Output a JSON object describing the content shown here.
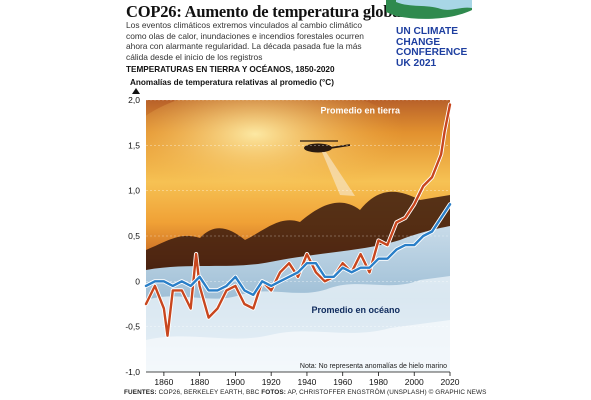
{
  "header": {
    "title": "COP26: Aumento de temperatura global",
    "intro": "Los eventos climáticos extremos vinculados al cambio climático como olas de calor, inundaciones e incendios forestales ocurren ahora con alarmante regularidad. La década pasada fue la más cálida desde el inicio de los registros"
  },
  "logo": {
    "lines": [
      "UN CLIMATE",
      "CHANGE",
      "CONFERENCE",
      "UK 2021"
    ],
    "color": "#1e3fa0"
  },
  "sources": {
    "label_sources": "FUENTES:",
    "sources_text": "COP26, BERKELEY EARTH, BBC",
    "label_photos": "FOTOS:",
    "photos_text": "AP, CHRISTOFFER ENGSTRÖM (UNSPLASH) © GRAPHIC NEWS"
  },
  "chart_data": {
    "type": "line",
    "title": "TEMPERATURAS EN TIERRA Y OCÉANOS, 1850-2020",
    "ylabel": "Anomalías de temperatura relativas al promedio (°C)",
    "xlabel": "",
    "xlim": [
      1850,
      2020
    ],
    "ylim": [
      -1.0,
      2.0
    ],
    "x_ticks": [
      "1860",
      "1880",
      "1900",
      "1920",
      "1940",
      "1960",
      "1980",
      "2000",
      "2020"
    ],
    "y_ticks": [
      "2,0",
      "1,5",
      "1,0",
      "0,5",
      "0",
      "-0,5",
      "-1,0"
    ],
    "grid": true,
    "note": "Nota: No representa anomalías de hielo marino",
    "series": [
      {
        "name": "Promedio en tierra",
        "color": "#c8461e",
        "x": [
          1850,
          1855,
          1860,
          1862,
          1865,
          1870,
          1875,
          1878,
          1880,
          1885,
          1890,
          1895,
          1900,
          1905,
          1910,
          1915,
          1920,
          1925,
          1930,
          1935,
          1940,
          1945,
          1950,
          1955,
          1960,
          1965,
          1970,
          1975,
          1980,
          1985,
          1990,
          1995,
          2000,
          2005,
          2010,
          2015,
          2017,
          2020
        ],
        "y": [
          -0.25,
          -0.05,
          -0.3,
          -0.6,
          -0.1,
          -0.1,
          -0.3,
          0.3,
          -0.05,
          -0.4,
          -0.3,
          -0.1,
          -0.05,
          -0.25,
          -0.3,
          0.0,
          -0.1,
          0.1,
          0.2,
          0.05,
          0.3,
          0.1,
          0.0,
          0.05,
          0.2,
          0.1,
          0.3,
          0.1,
          0.45,
          0.4,
          0.65,
          0.7,
          0.85,
          1.05,
          1.15,
          1.4,
          1.65,
          1.95
        ]
      },
      {
        "name": "Promedio en océano",
        "color": "#2a7fc8",
        "x": [
          1850,
          1855,
          1860,
          1865,
          1870,
          1875,
          1880,
          1885,
          1890,
          1895,
          1900,
          1905,
          1910,
          1915,
          1920,
          1925,
          1930,
          1935,
          1940,
          1945,
          1950,
          1955,
          1960,
          1965,
          1970,
          1975,
          1980,
          1985,
          1990,
          1995,
          2000,
          2005,
          2010,
          2015,
          2020
        ],
        "y": [
          -0.05,
          0.0,
          0.0,
          -0.05,
          0.0,
          -0.05,
          0.05,
          -0.1,
          -0.1,
          -0.05,
          0.05,
          -0.1,
          -0.15,
          0.0,
          -0.05,
          0.0,
          0.05,
          0.1,
          0.2,
          0.2,
          0.05,
          0.05,
          0.15,
          0.1,
          0.15,
          0.15,
          0.25,
          0.25,
          0.35,
          0.4,
          0.4,
          0.5,
          0.55,
          0.7,
          0.85
        ]
      }
    ]
  }
}
